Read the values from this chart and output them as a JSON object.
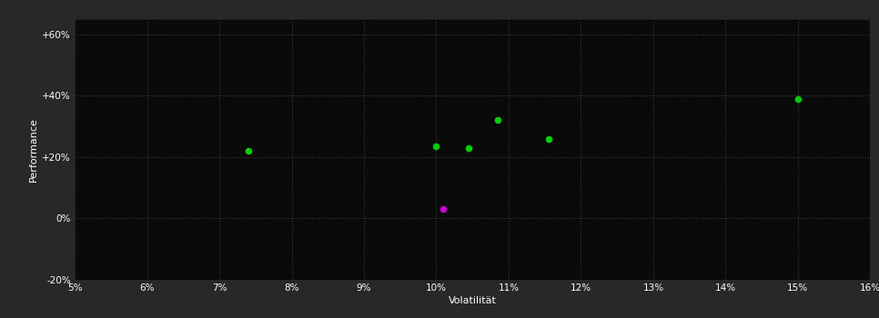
{
  "background_color": "#282828",
  "plot_bg_color": "#0a0a0a",
  "grid_color": "#404040",
  "text_color": "#ffffff",
  "green_points": [
    [
      7.4,
      22
    ],
    [
      10.0,
      23.5
    ],
    [
      10.45,
      23
    ],
    [
      10.85,
      32
    ],
    [
      11.55,
      26
    ],
    [
      15.0,
      39
    ]
  ],
  "magenta_points": [
    [
      10.1,
      3
    ]
  ],
  "green_color": "#00cc00",
  "magenta_color": "#cc00cc",
  "xlabel": "Volatilität",
  "ylabel": "Performance",
  "xlim": [
    5,
    16
  ],
  "ylim": [
    -20,
    65
  ],
  "xtick_labels": [
    "5%",
    "6%",
    "7%",
    "8%",
    "9%",
    "10%",
    "11%",
    "12%",
    "13%",
    "14%",
    "15%",
    "16%"
  ],
  "xtick_values": [
    5,
    6,
    7,
    8,
    9,
    10,
    11,
    12,
    13,
    14,
    15,
    16
  ],
  "ytick_labels": [
    "-20%",
    "0%",
    "+20%",
    "+40%",
    "+60%"
  ],
  "ytick_values": [
    -20,
    0,
    20,
    40,
    60
  ],
  "marker_size": 30,
  "grid_linestyle": "dotted",
  "grid_linewidth": 0.7
}
